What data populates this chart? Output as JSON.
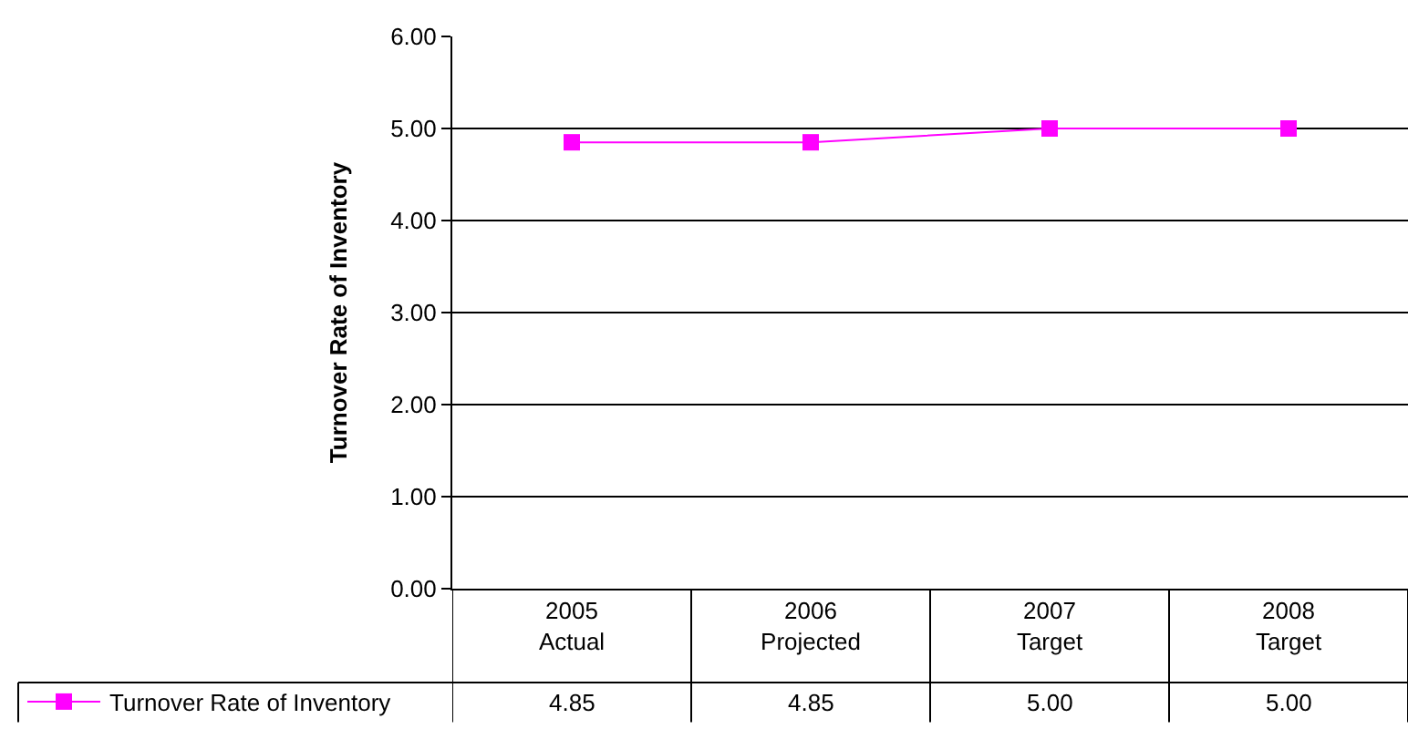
{
  "chart_data": {
    "type": "line",
    "ylabel": "Turnover Rate of Inventory",
    "categories": [
      "2005\nActual",
      "2006\nProjected",
      "2007\nTarget",
      "2008\nTarget"
    ],
    "series": [
      {
        "name": "Turnover Rate of Inventory",
        "color": "#ff00ff",
        "values": [
          4.85,
          4.85,
          5.0,
          5.0
        ],
        "value_labels": [
          "4.85",
          "4.85",
          "5.00",
          "5.00"
        ]
      }
    ],
    "ylim": [
      0,
      6
    ],
    "yticks": [
      {
        "value": 0,
        "label": "0.00"
      },
      {
        "value": 1,
        "label": "1.00"
      },
      {
        "value": 2,
        "label": "2.00"
      },
      {
        "value": 3,
        "label": "3.00"
      },
      {
        "value": 4,
        "label": "4.00"
      },
      {
        "value": 5,
        "label": "5.00"
      },
      {
        "value": 6,
        "label": "6.00"
      }
    ],
    "grid": "y",
    "legend": "bottom left",
    "marker": "square",
    "line_style": "solid"
  }
}
